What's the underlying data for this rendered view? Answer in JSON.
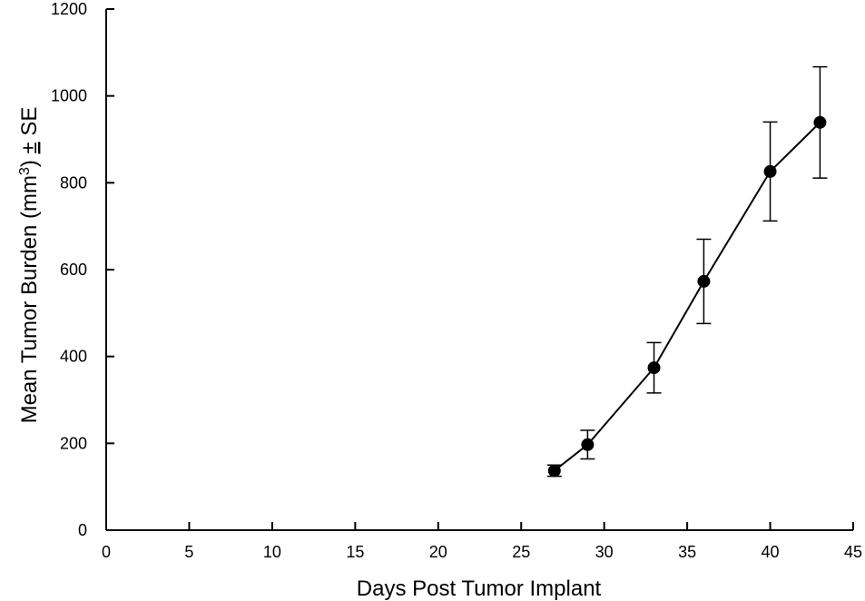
{
  "chart_data": {
    "type": "scatter",
    "xlabel": "Days Post Tumor Implant",
    "ylabel": {
      "prefix": "Mean Tumor Burden (mm",
      "superscript": "3",
      "suffix": ") ",
      "pm_symbol": "±",
      "tail": " SE"
    },
    "xlim": [
      0,
      45
    ],
    "ylim": [
      0,
      1200
    ],
    "xticks": [
      0,
      5,
      10,
      15,
      20,
      25,
      30,
      35,
      40,
      45
    ],
    "yticks": [
      0,
      200,
      400,
      600,
      800,
      1000,
      1200
    ],
    "grid": false,
    "series": [
      {
        "x": [
          27,
          29,
          33,
          36,
          40,
          43
        ],
        "y": [
          137,
          197,
          374,
          573,
          826,
          939
        ],
        "error": [
          13,
          33,
          58,
          97,
          114,
          128
        ],
        "marker": "filled-circle",
        "line": true,
        "color": "#000000"
      }
    ]
  }
}
